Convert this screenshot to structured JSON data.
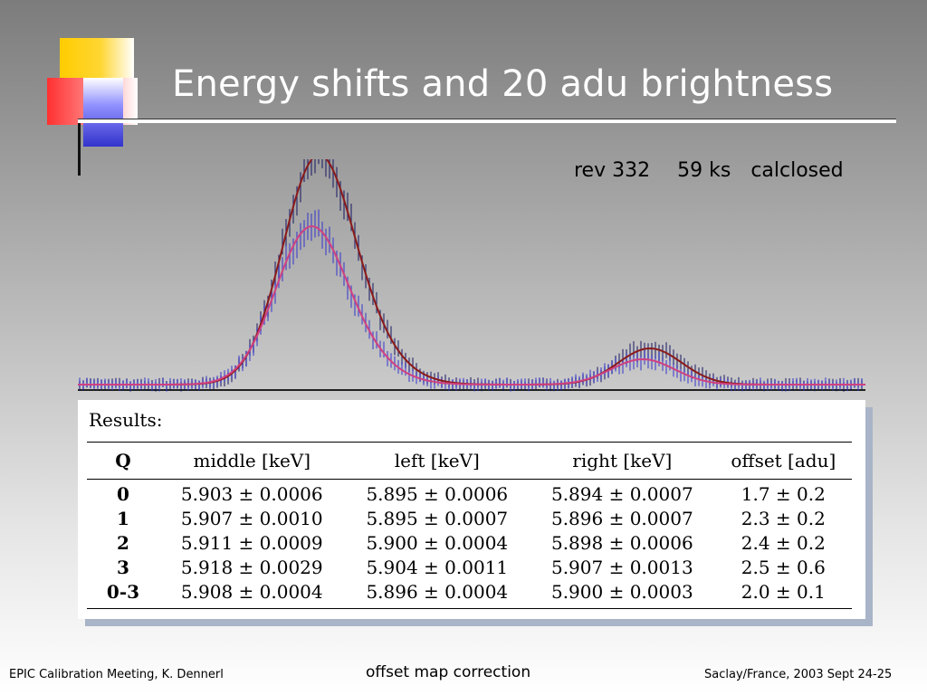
{
  "slide": {
    "title": "Energy shifts and 20 adu brightness",
    "spectrum_info": [
      "rev 332",
      "59 ks",
      "calclosed"
    ]
  },
  "results": {
    "heading": "Results:",
    "columns": [
      "Q",
      "middle [keV]",
      "left [keV]",
      "right [keV]",
      "offset [adu]"
    ],
    "rows": [
      [
        "0",
        "5.903 ± 0.0006",
        "5.895 ± 0.0006",
        "5.894 ± 0.0007",
        "1.7 ± 0.2"
      ],
      [
        "1",
        "5.907 ± 0.0010",
        "5.895 ± 0.0007",
        "5.896 ± 0.0007",
        "2.3 ± 0.2"
      ],
      [
        "2",
        "5.911 ± 0.0009",
        "5.900 ± 0.0004",
        "5.898 ± 0.0006",
        "2.4 ± 0.2"
      ],
      [
        "3",
        "5.918 ± 0.0029",
        "5.904 ± 0.0011",
        "5.907 ± 0.0013",
        "2.5 ± 0.6"
      ],
      [
        "0-3",
        "5.908 ± 0.0004",
        "5.896 ± 0.0004",
        "5.900 ± 0.0003",
        "2.0 ± 0.1"
      ]
    ]
  },
  "footer": {
    "left": "EPIC Calibration Meeting, K. Dennerl",
    "center": "offset map correction",
    "right": "Saclay/France, 2003 Sept 24-25"
  },
  "colors": {
    "title_text": "#ffffff",
    "curve_dark": "#8b1a1a",
    "curve_light": "#d04080",
    "points_dark": "#101060",
    "points_light": "#3030d0"
  }
}
